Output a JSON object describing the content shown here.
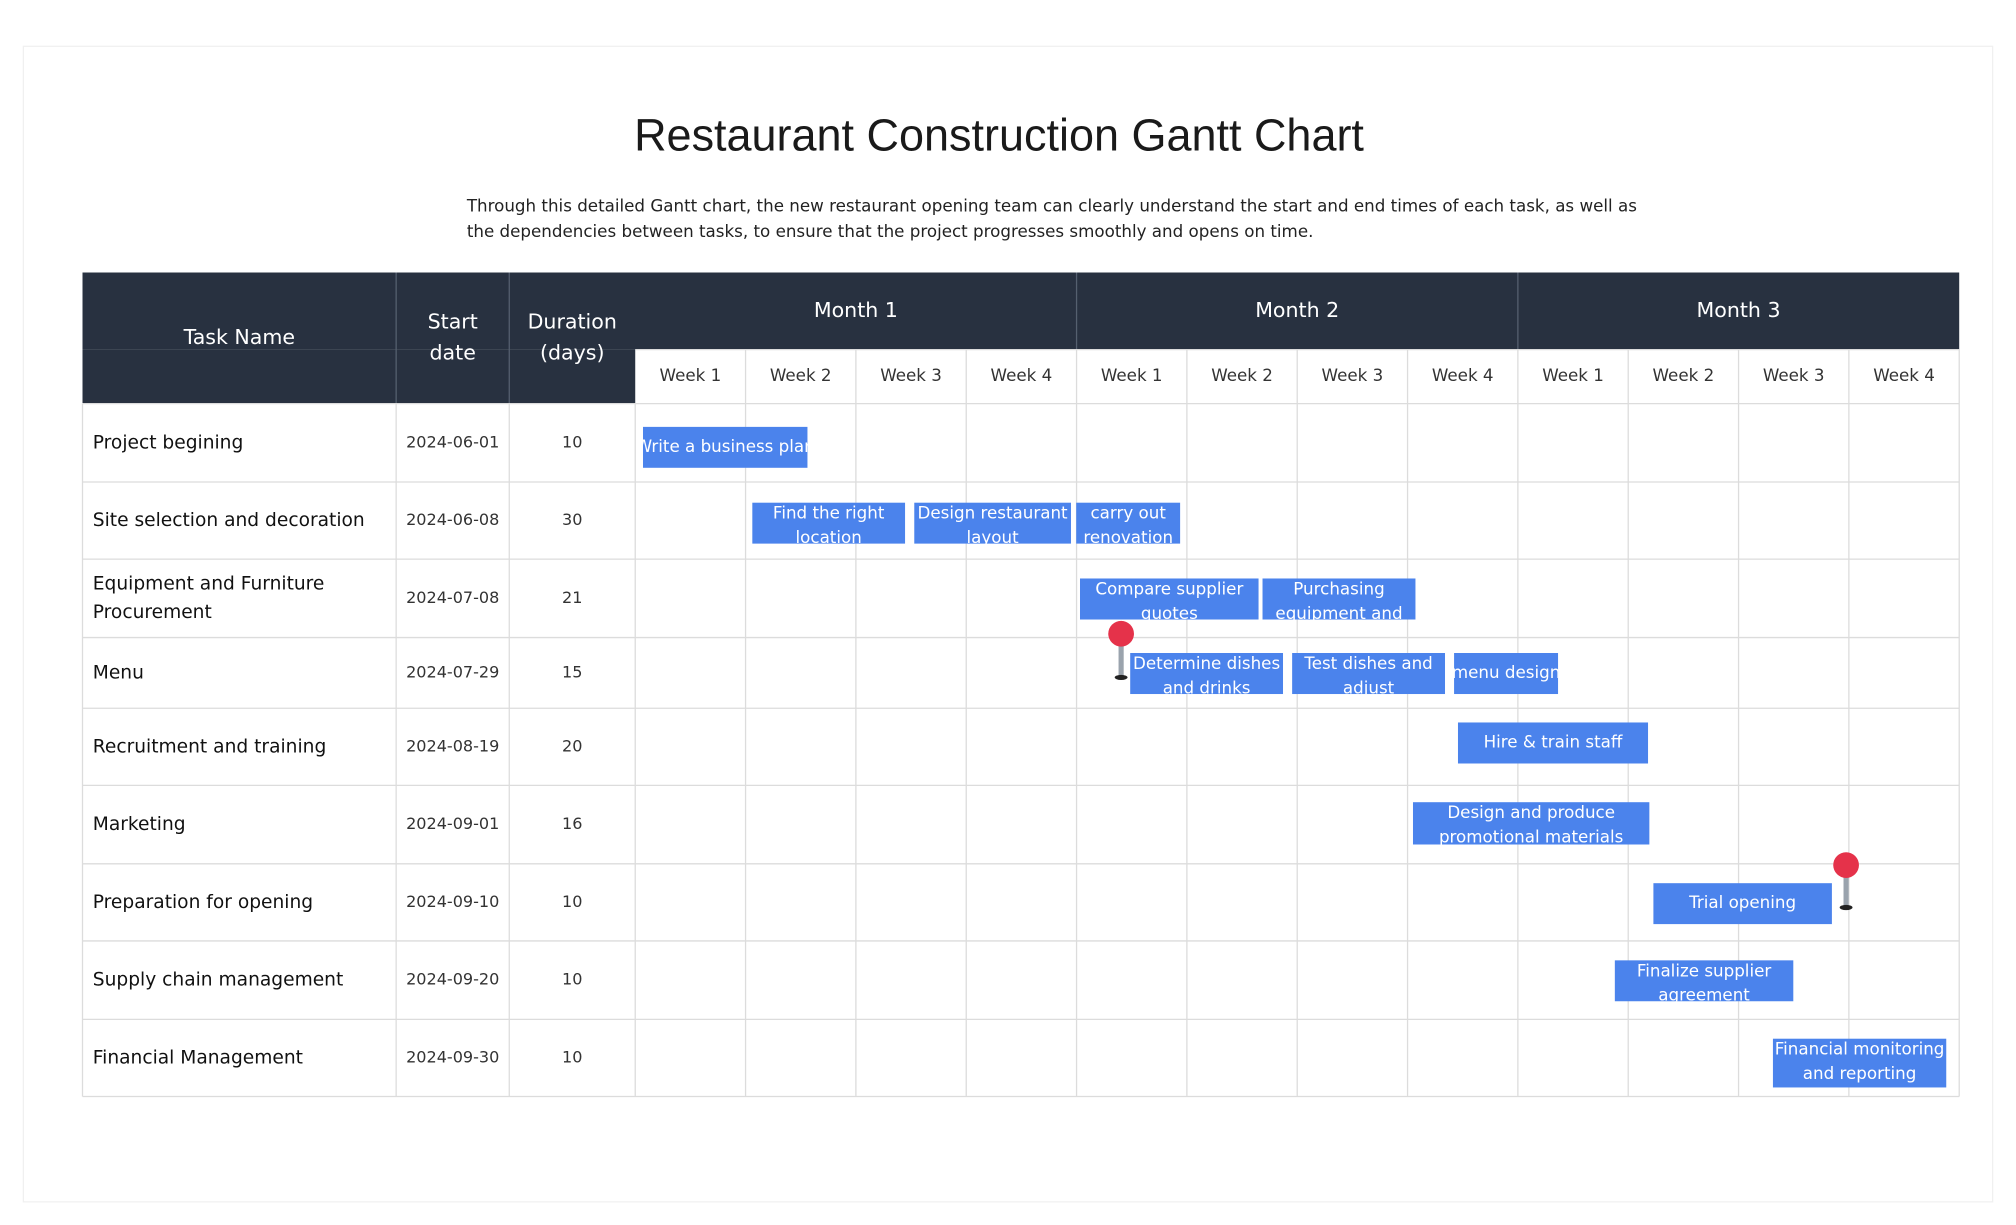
{
  "title": "Restaurant Construction Gantt Chart",
  "description": [
    "Through this detailed Gantt chart, the new restaurant opening team can clearly understand the start and end times of each task, as well as",
    "the dependencies between tasks, to ensure that the project progresses smoothly and opens on time."
  ],
  "table": {
    "headers": {
      "task": [
        "Task Name"
      ],
      "start": [
        "Start",
        "date"
      ],
      "duration": [
        "Duration",
        "(days)"
      ]
    },
    "months": [
      {
        "label": "Month 1",
        "weeks": [
          "Week 1",
          "Week 2",
          "Week 3",
          "Week 4"
        ]
      },
      {
        "label": "Month 2",
        "weeks": [
          "Week 1",
          "Week 2",
          "Week 3",
          "Week 4"
        ]
      },
      {
        "label": "Month 3",
        "weeks": [
          "Week 1",
          "Week 2",
          "Week 3",
          "Week 4"
        ]
      }
    ],
    "rows": [
      {
        "task": [
          "Project begining"
        ],
        "start": "2024-06-01",
        "duration": 10,
        "bars": [
          [
            "Write a business plan"
          ]
        ]
      },
      {
        "task": [
          "Site selection and decoration"
        ],
        "start": "2024-06-08",
        "duration": 30,
        "bars": [
          [
            "Find the right",
            "location"
          ],
          [
            "Design restaurant",
            "layout"
          ],
          [
            "carry out",
            "renovation"
          ]
        ]
      },
      {
        "task": [
          "Equipment and Furniture",
          "Procurement"
        ],
        "start": "2024-07-08",
        "duration": 21,
        "bars": [
          [
            "Compare supplier",
            "quotes"
          ],
          [
            "Purchasing",
            "equipment and"
          ]
        ]
      },
      {
        "task": [
          "Menu"
        ],
        "start": "2024-07-29",
        "duration": 15,
        "bars": [
          [
            "Determine dishes",
            "and drinks"
          ],
          [
            "Test dishes and",
            "adjust"
          ],
          [
            "menu design"
          ]
        ]
      },
      {
        "task": [
          "Recruitment and training"
        ],
        "start": "2024-08-19",
        "duration": 20,
        "bars": [
          [
            "Hire & train staff"
          ]
        ]
      },
      {
        "task": [
          "Marketing"
        ],
        "start": "2024-09-01",
        "duration": 16,
        "bars": [
          [
            "Design and produce",
            "promotional materials"
          ]
        ]
      },
      {
        "task": [
          "Preparation for opening"
        ],
        "start": "2024-09-10",
        "duration": 10,
        "bars": [
          [
            "Trial opening"
          ]
        ]
      },
      {
        "task": [
          "Supply chain management"
        ],
        "start": "2024-09-20",
        "duration": 10,
        "bars": [
          [
            "Finalize supplier",
            "agreement"
          ]
        ]
      },
      {
        "task": [
          "Financial Management"
        ],
        "start": "2024-09-30",
        "duration": 10,
        "bars": [
          [
            "Financial monitoring",
            "and reporting"
          ]
        ]
      }
    ]
  }
}
